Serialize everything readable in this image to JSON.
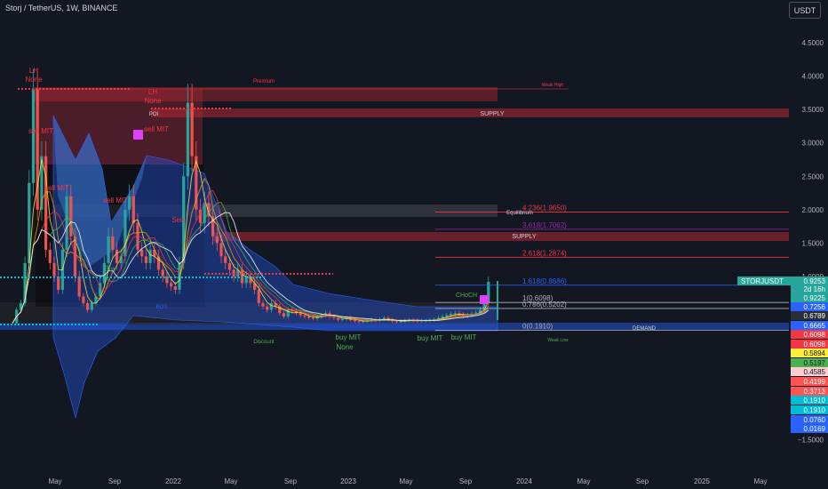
{
  "header": {
    "title": "Storj / TetherUS, 1W, BINANCE",
    "currency_button": "USDT"
  },
  "chart_data": {
    "type": "candlestick",
    "symbol": "STORJUSDT",
    "ylim": [
      -1.5,
      5.0
    ],
    "y_ticks": [
      "4.5000",
      "4.0000",
      "3.5000",
      "3.0000",
      "2.5000",
      "2.0000",
      "1.5000",
      "1.0000",
      "0.0000",
      "−1.5000"
    ],
    "x_ticks": [
      "May",
      "Sep",
      "2022",
      "May",
      "Sep",
      "2023",
      "May",
      "Sep",
      "2024",
      "May",
      "Sep",
      "2025",
      "May"
    ],
    "price_tags": [
      {
        "label": "STORJUSDT",
        "value": "0.9253",
        "color": "#26a69a"
      },
      {
        "label": "",
        "value": "2d 16h",
        "color": "#26a69a"
      },
      {
        "label": "",
        "value": "0.9225",
        "color": "#26a69a"
      },
      {
        "label": "",
        "value": "0.7256",
        "color": "#2962ff"
      },
      {
        "label": "",
        "value": "0.6789",
        "color": "#2a2e39"
      },
      {
        "label": "",
        "value": "0.6665",
        "color": "#2962ff"
      },
      {
        "label": "",
        "value": "0.6098",
        "color": "#f23645"
      },
      {
        "label": "",
        "value": "0.6098",
        "color": "#f23645"
      },
      {
        "label": "",
        "value": "0.5894",
        "color": "#ffeb3b"
      },
      {
        "label": "",
        "value": "0.5197",
        "color": "#4caf50"
      },
      {
        "label": "",
        "value": "0.4585",
        "color": "#ffcdd2"
      },
      {
        "label": "",
        "value": "0.4199",
        "color": "#ff5252"
      },
      {
        "label": "",
        "value": "0.3713",
        "color": "#ff5252"
      },
      {
        "label": "",
        "value": "0.1910",
        "color": "#00bcd4"
      },
      {
        "label": "",
        "value": "0.1910",
        "color": "#00bcd4"
      },
      {
        "label": "",
        "value": "0.0760",
        "color": "#2962ff"
      },
      {
        "label": "",
        "value": "0.0169",
        "color": "#2962ff"
      }
    ],
    "fib_levels": [
      {
        "label": "4.236(1.9650)",
        "value": 1.965,
        "color": "#f23645"
      },
      {
        "label": "3.618(1.7062)",
        "value": 1.7062,
        "color": "#9c27b0"
      },
      {
        "label": "2.618(1.2874)",
        "value": 1.2874,
        "color": "#f23645"
      },
      {
        "label": "1.618(0.8686)",
        "value": 0.8686,
        "color": "#2962ff"
      },
      {
        "label": "1(0.6098)",
        "value": 0.6098,
        "color": "#b2b5be"
      },
      {
        "label": "0.786(0.5202)",
        "value": 0.5202,
        "color": "#b2b5be"
      },
      {
        "label": "0(0.1910)",
        "value": 0.191,
        "color": "#b2b5be"
      }
    ],
    "zone_labels": [
      "Premium",
      "Weak High",
      "POI",
      "SUPPLY",
      "Equilibrium",
      "SUPPLY",
      "DEMAND",
      "Weak Low",
      "Discount",
      "CHoCH",
      "BOS"
    ],
    "annotations": [
      "LH",
      "None",
      "LH",
      "None",
      "sell MIT",
      "sell MIT",
      "sell MIT",
      "sell MIT",
      "Sell",
      "Buy",
      "buy MIT",
      "None",
      "buy MIT",
      "buy MIT"
    ],
    "colors": {
      "up": "#26a69a",
      "down": "#ef5350",
      "cloud": "#2962ff",
      "supply": "#b22833"
    }
  }
}
